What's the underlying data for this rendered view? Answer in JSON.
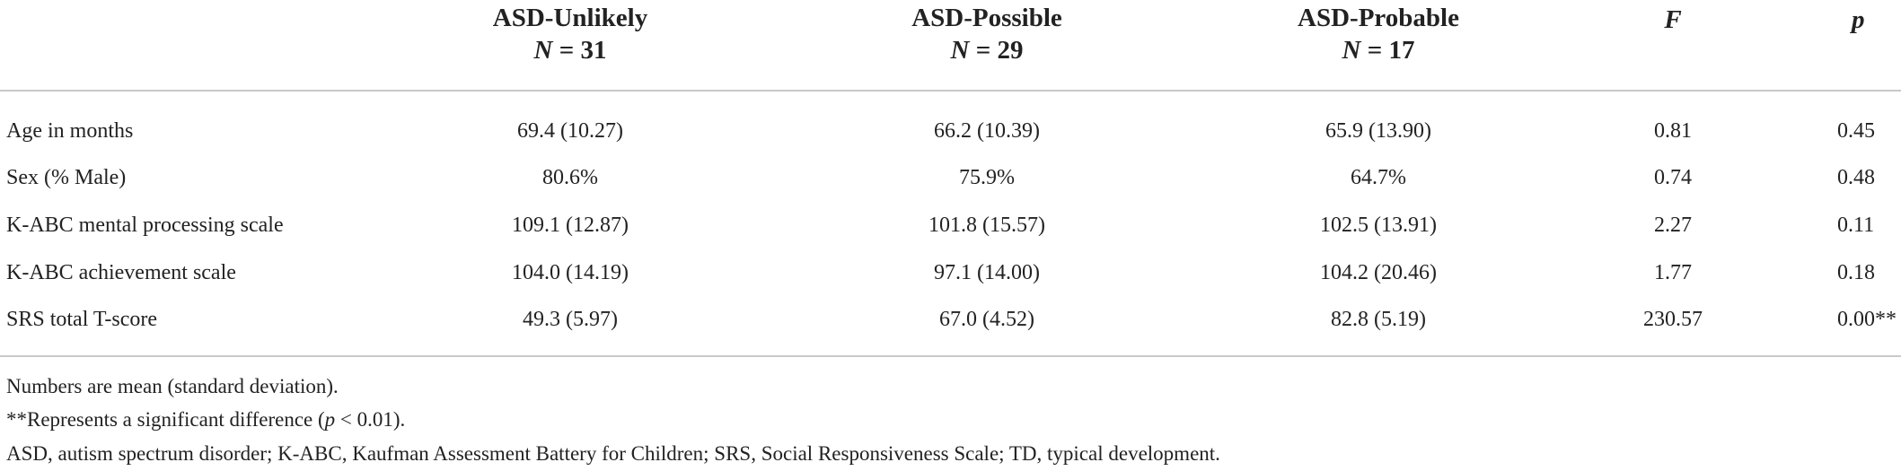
{
  "table": {
    "headers": [
      {
        "name": "ASD-Unlikely",
        "n_symbol": "N",
        "n_text": "= 31"
      },
      {
        "name": "ASD-Possible",
        "n_symbol": "N",
        "n_text": "= 29"
      },
      {
        "name": "ASD-Probable",
        "n_symbol": "N",
        "n_text": "= 17"
      },
      {
        "name": "F"
      },
      {
        "name": "p"
      }
    ],
    "rows": [
      [
        "Age in months",
        "69.4 (10.27)",
        "66.2 (10.39)",
        "65.9 (13.90)",
        "0.81",
        "0.45"
      ],
      [
        "Sex (% Male)",
        "80.6%",
        "75.9%",
        "64.7%",
        "0.74",
        "0.48"
      ],
      [
        "K-ABC mental processing scale",
        "109.1 (12.87)",
        "101.8 (15.57)",
        "102.5 (13.91)",
        "2.27",
        "0.11"
      ],
      [
        "K-ABC achievement scale",
        "104.0 (14.19)",
        "97.1 (14.00)",
        "104.2 (20.46)",
        "1.77",
        "0.18"
      ],
      [
        "SRS total T-score",
        "49.3 (5.97)",
        "67.0 (4.52)",
        "82.8 (5.19)",
        "230.57",
        "0.00**"
      ]
    ],
    "footnotes": [
      [
        "Numbers are mean (standard deviation)."
      ],
      [
        "**Represents a significant difference (",
        "p",
        " < 0.01)."
      ],
      [
        "ASD, autism spectrum disorder; K-ABC, Kaufman Assessment Battery for Children; SRS, Social Responsiveness Scale; TD, typical development."
      ]
    ]
  }
}
